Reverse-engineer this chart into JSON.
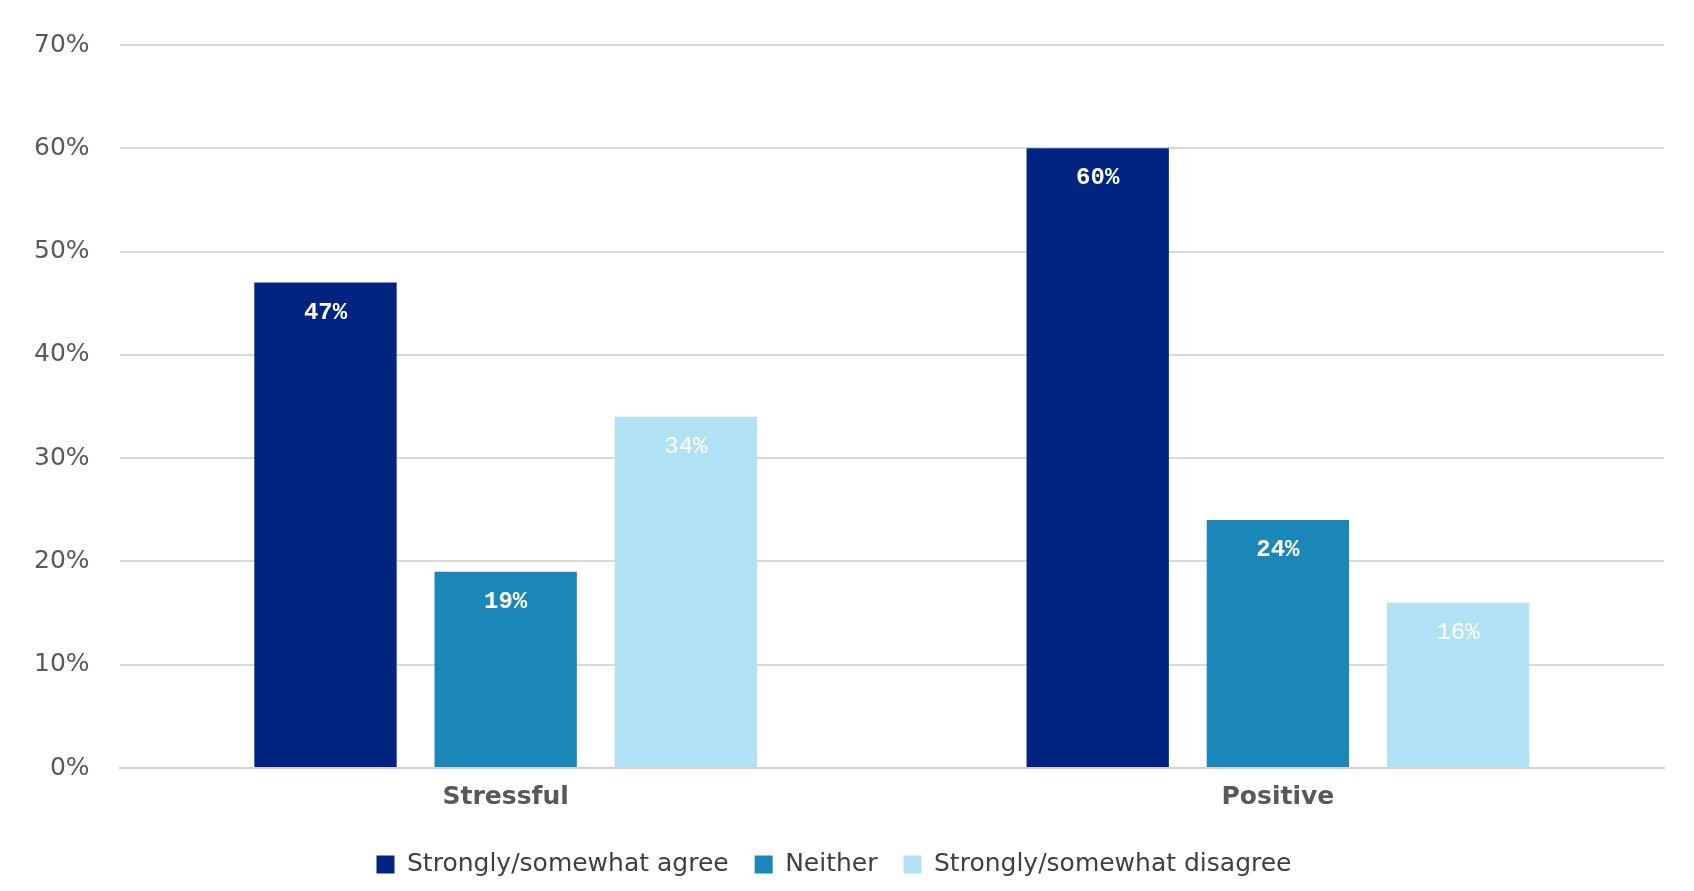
{
  "chart_data": {
    "type": "bar",
    "categories": [
      "Stressful",
      "Positive"
    ],
    "series": [
      {
        "name": "Strongly/somewhat agree",
        "color": "#002480",
        "values": [
          47,
          60
        ],
        "value_labels": [
          "47%",
          "60%"
        ]
      },
      {
        "name": "Neither",
        "color": "#1a87b8",
        "values": [
          19,
          24
        ],
        "value_labels": [
          "19%",
          "24%"
        ]
      },
      {
        "name": "Strongly/somewhat disagree",
        "color": "#b1e2f4",
        "values": [
          34,
          16
        ],
        "value_labels": [
          "34%",
          "16%"
        ]
      }
    ],
    "ylim": [
      0,
      70
    ],
    "yticks": [
      {
        "value": 0,
        "label": "0%"
      },
      {
        "value": 10,
        "label": "10%"
      },
      {
        "value": 20,
        "label": "20%"
      },
      {
        "value": 30,
        "label": "30%"
      },
      {
        "value": 40,
        "label": "40%"
      },
      {
        "value": 50,
        "label": "50%"
      },
      {
        "value": 60,
        "label": "60%"
      },
      {
        "value": 70,
        "label": "70%"
      }
    ],
    "grid": "y",
    "legend": "bottom"
  }
}
